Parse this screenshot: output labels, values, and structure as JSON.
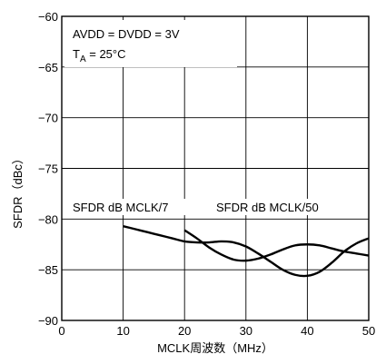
{
  "chart_data": {
    "type": "line",
    "xlabel": "MCLK周波数（MHz）",
    "ylabel": "SFDR（dBc）",
    "xlim": [
      0,
      50
    ],
    "ylim": [
      -90,
      -60
    ],
    "xticks": [
      0,
      10,
      20,
      30,
      40,
      50
    ],
    "yticks": [
      -90,
      -85,
      -80,
      -75,
      -70,
      -65,
      -60
    ],
    "xtick_labels": [
      "0",
      "10",
      "20",
      "30",
      "40",
      "50"
    ],
    "ytick_labels": [
      "−90",
      "−85",
      "−80",
      "−75",
      "−70",
      "−65",
      "−60"
    ],
    "grid": true,
    "annotations": {
      "line1": "AVDD = DVDD = 3V",
      "line2_main": "T",
      "line2_sub": "A",
      "line2_rest": " = 25°C"
    },
    "series": [
      {
        "name": "SFDR dB MCLK/7",
        "x": [
          10,
          12,
          14,
          16,
          18,
          20,
          22,
          24,
          26,
          28,
          30,
          32,
          34,
          36,
          38,
          40,
          42,
          44,
          46,
          48,
          50
        ],
        "y": [
          -80.7,
          -81.0,
          -81.3,
          -81.6,
          -81.9,
          -82.2,
          -82.3,
          -82.3,
          -82.2,
          -82.3,
          -82.7,
          -83.4,
          -84.2,
          -85.0,
          -85.5,
          -85.6,
          -85.2,
          -84.3,
          -83.2,
          -82.4,
          -81.9
        ]
      },
      {
        "name": "SFDR dB MCLK/50",
        "x": [
          20,
          22,
          24,
          26,
          28,
          30,
          32,
          34,
          36,
          38,
          40,
          42,
          44,
          46,
          48,
          50
        ],
        "y": [
          -81.1,
          -81.9,
          -82.8,
          -83.5,
          -84.0,
          -84.1,
          -83.9,
          -83.5,
          -83.0,
          -82.6,
          -82.5,
          -82.6,
          -82.9,
          -83.2,
          -83.4,
          -83.6
        ]
      }
    ]
  }
}
